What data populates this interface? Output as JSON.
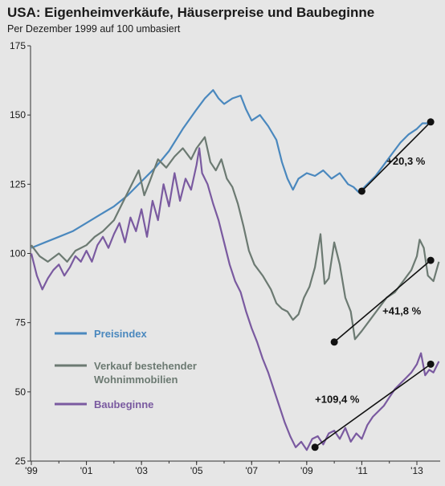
{
  "header": {
    "title": "USA: Eigenheimverkäufe, Häuserpreise und Baubeginne",
    "subtitle": "Per Dezember 1999 auf 100 umbasiert"
  },
  "colors": {
    "preisindex": "#4a88be",
    "verkauf": "#6c7a72",
    "baubeginne": "#7a5aa0",
    "trend": "#111111",
    "background": "#e6e6e6"
  },
  "chart_data": {
    "type": "line",
    "title": "USA: Eigenheimverkäufe, Häuserpreise und Baubeginne",
    "subtitle": "Per Dezember 1999 auf 100 umbasiert",
    "xlim": [
      1999.0,
      2013.6
    ],
    "ylim": [
      25,
      175
    ],
    "x_ticks": [
      {
        "value": 1999,
        "label": "'99"
      },
      {
        "value": 2001,
        "label": "'01"
      },
      {
        "value": 2003,
        "label": "'03"
      },
      {
        "value": 2005,
        "label": "'05"
      },
      {
        "value": 2007,
        "label": "'07"
      },
      {
        "value": 2009,
        "label": "'09"
      },
      {
        "value": 2011,
        "label": "'11"
      },
      {
        "value": 2013,
        "label": "'13"
      }
    ],
    "y_ticks": [
      25,
      50,
      75,
      100,
      125,
      150,
      175
    ],
    "grid": false,
    "legend_position": "left-middle",
    "series": [
      {
        "name": "Preisindex",
        "color_key": "preisindex",
        "points": [
          [
            1999.0,
            102
          ],
          [
            1999.5,
            104
          ],
          [
            2000.0,
            106
          ],
          [
            2000.5,
            108
          ],
          [
            2001.0,
            111
          ],
          [
            2001.5,
            114
          ],
          [
            2002.0,
            117
          ],
          [
            2002.5,
            121
          ],
          [
            2003.0,
            126
          ],
          [
            2003.5,
            131
          ],
          [
            2004.0,
            137
          ],
          [
            2004.5,
            145
          ],
          [
            2005.0,
            152
          ],
          [
            2005.3,
            156
          ],
          [
            2005.6,
            159
          ],
          [
            2005.8,
            156
          ],
          [
            2006.0,
            154
          ],
          [
            2006.3,
            156
          ],
          [
            2006.6,
            157
          ],
          [
            2006.8,
            152
          ],
          [
            2007.0,
            148
          ],
          [
            2007.3,
            150
          ],
          [
            2007.6,
            146
          ],
          [
            2007.9,
            141
          ],
          [
            2008.1,
            133
          ],
          [
            2008.3,
            127
          ],
          [
            2008.5,
            123
          ],
          [
            2008.7,
            127
          ],
          [
            2009.0,
            129
          ],
          [
            2009.3,
            128
          ],
          [
            2009.6,
            130
          ],
          [
            2009.9,
            127
          ],
          [
            2010.2,
            129
          ],
          [
            2010.5,
            125
          ],
          [
            2010.7,
            124
          ],
          [
            2010.9,
            122
          ],
          [
            2011.2,
            125
          ],
          [
            2011.5,
            128
          ],
          [
            2011.8,
            132
          ],
          [
            2012.1,
            136
          ],
          [
            2012.4,
            140
          ],
          [
            2012.7,
            143
          ],
          [
            2013.0,
            145
          ],
          [
            2013.2,
            147
          ],
          [
            2013.45,
            147
          ]
        ]
      },
      {
        "name": "Verkauf bestehender Wohnimmobilien",
        "color_key": "verkauf",
        "points": [
          [
            1999.0,
            103
          ],
          [
            1999.3,
            99
          ],
          [
            1999.6,
            97
          ],
          [
            2000.0,
            100
          ],
          [
            2000.3,
            97
          ],
          [
            2000.6,
            101
          ],
          [
            2001.0,
            103
          ],
          [
            2001.3,
            106
          ],
          [
            2001.6,
            108
          ],
          [
            2002.0,
            112
          ],
          [
            2002.3,
            118
          ],
          [
            2002.6,
            124
          ],
          [
            2002.9,
            130
          ],
          [
            2003.1,
            121
          ],
          [
            2003.3,
            126
          ],
          [
            2003.6,
            134
          ],
          [
            2003.9,
            131
          ],
          [
            2004.2,
            135
          ],
          [
            2004.5,
            138
          ],
          [
            2004.8,
            134
          ],
          [
            2005.0,
            138
          ],
          [
            2005.3,
            142
          ],
          [
            2005.5,
            133
          ],
          [
            2005.7,
            130
          ],
          [
            2005.9,
            134
          ],
          [
            2006.1,
            127
          ],
          [
            2006.3,
            124
          ],
          [
            2006.5,
            118
          ],
          [
            2006.7,
            110
          ],
          [
            2006.9,
            101
          ],
          [
            2007.1,
            96
          ],
          [
            2007.4,
            92
          ],
          [
            2007.7,
            87
          ],
          [
            2007.9,
            82
          ],
          [
            2008.1,
            80
          ],
          [
            2008.3,
            79
          ],
          [
            2008.5,
            76
          ],
          [
            2008.7,
            78
          ],
          [
            2008.9,
            84
          ],
          [
            2009.1,
            88
          ],
          [
            2009.3,
            95
          ],
          [
            2009.5,
            107
          ],
          [
            2009.65,
            89
          ],
          [
            2009.8,
            91
          ],
          [
            2010.0,
            104
          ],
          [
            2010.2,
            96
          ],
          [
            2010.4,
            84
          ],
          [
            2010.6,
            79
          ],
          [
            2010.75,
            69
          ],
          [
            2011.0,
            72
          ],
          [
            2011.3,
            76
          ],
          [
            2011.6,
            80
          ],
          [
            2011.9,
            84
          ],
          [
            2012.2,
            86
          ],
          [
            2012.5,
            90
          ],
          [
            2012.8,
            94
          ],
          [
            2013.0,
            99
          ],
          [
            2013.1,
            105
          ],
          [
            2013.25,
            102
          ],
          [
            2013.4,
            92
          ],
          [
            2013.6,
            90
          ],
          [
            2013.8,
            97
          ]
        ]
      },
      {
        "name": "Baubeginne",
        "color_key": "baubeginne",
        "points": [
          [
            1999.0,
            100
          ],
          [
            1999.2,
            92
          ],
          [
            1999.4,
            87
          ],
          [
            1999.6,
            91
          ],
          [
            1999.8,
            94
          ],
          [
            2000.0,
            96
          ],
          [
            2000.2,
            92
          ],
          [
            2000.4,
            95
          ],
          [
            2000.6,
            99
          ],
          [
            2000.8,
            97
          ],
          [
            2001.0,
            101
          ],
          [
            2001.2,
            97
          ],
          [
            2001.4,
            103
          ],
          [
            2001.6,
            106
          ],
          [
            2001.8,
            102
          ],
          [
            2002.0,
            107
          ],
          [
            2002.2,
            111
          ],
          [
            2002.4,
            104
          ],
          [
            2002.6,
            113
          ],
          [
            2002.8,
            108
          ],
          [
            2003.0,
            116
          ],
          [
            2003.2,
            106
          ],
          [
            2003.4,
            119
          ],
          [
            2003.6,
            112
          ],
          [
            2003.8,
            125
          ],
          [
            2004.0,
            117
          ],
          [
            2004.2,
            129
          ],
          [
            2004.4,
            119
          ],
          [
            2004.6,
            127
          ],
          [
            2004.8,
            123
          ],
          [
            2005.0,
            132
          ],
          [
            2005.1,
            138
          ],
          [
            2005.2,
            129
          ],
          [
            2005.4,
            125
          ],
          [
            2005.6,
            118
          ],
          [
            2005.8,
            112
          ],
          [
            2006.0,
            104
          ],
          [
            2006.2,
            96
          ],
          [
            2006.4,
            90
          ],
          [
            2006.6,
            86
          ],
          [
            2006.8,
            79
          ],
          [
            2007.0,
            73
          ],
          [
            2007.2,
            68
          ],
          [
            2007.4,
            62
          ],
          [
            2007.6,
            57
          ],
          [
            2007.8,
            51
          ],
          [
            2008.0,
            45
          ],
          [
            2008.2,
            39
          ],
          [
            2008.4,
            34
          ],
          [
            2008.6,
            30
          ],
          [
            2008.8,
            32
          ],
          [
            2009.0,
            29
          ],
          [
            2009.2,
            33
          ],
          [
            2009.4,
            34
          ],
          [
            2009.6,
            31
          ],
          [
            2009.8,
            35
          ],
          [
            2010.0,
            36
          ],
          [
            2010.2,
            33
          ],
          [
            2010.4,
            37
          ],
          [
            2010.6,
            32
          ],
          [
            2010.8,
            35
          ],
          [
            2011.0,
            33
          ],
          [
            2011.2,
            38
          ],
          [
            2011.4,
            41
          ],
          [
            2011.6,
            43
          ],
          [
            2011.8,
            45
          ],
          [
            2012.0,
            48
          ],
          [
            2012.2,
            51
          ],
          [
            2012.4,
            53
          ],
          [
            2012.6,
            55
          ],
          [
            2012.8,
            57
          ],
          [
            2013.0,
            60
          ],
          [
            2013.15,
            64
          ],
          [
            2013.3,
            56
          ],
          [
            2013.45,
            58
          ],
          [
            2013.6,
            57
          ],
          [
            2013.8,
            61
          ]
        ]
      }
    ],
    "trend_lines": [
      {
        "label": "+20,3 %",
        "from": [
          2011.0,
          122.5
        ],
        "to": [
          2013.5,
          147.5
        ],
        "label_at": [
          2011.9,
          132
        ]
      },
      {
        "label": "+41,8 %",
        "from": [
          2010.0,
          68.0
        ],
        "to": [
          2013.5,
          97.5
        ],
        "label_at": [
          2011.75,
          78
        ]
      },
      {
        "label": "+109,4 %",
        "from": [
          2009.3,
          30.0
        ],
        "to": [
          2013.5,
          60.0
        ],
        "label_at": [
          2009.3,
          46
        ]
      }
    ],
    "legend": [
      {
        "label": "Preisindex",
        "color_key": "preisindex"
      },
      {
        "label": "Verkauf bestehender",
        "label2": "Wohnimmobilien",
        "color_key": "verkauf"
      },
      {
        "label": "Baubeginne",
        "color_key": "baubeginne"
      }
    ]
  }
}
